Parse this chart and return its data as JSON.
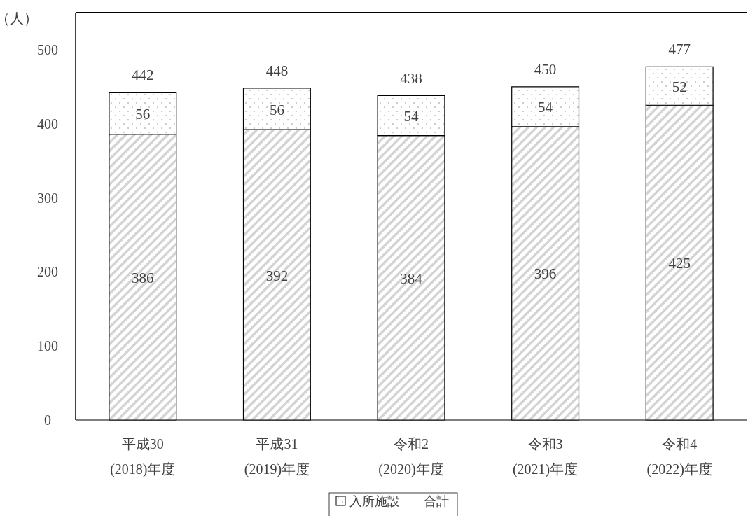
{
  "chart_data": {
    "type": "bar",
    "stacked": true,
    "ylabel": "（人）",
    "categories": [
      "平成30\n(2018)年度",
      "平成31\n(2019)年度",
      "令和2\n(2020)年度",
      "令和3\n(2021)年度",
      "令和4\n(2022)年度"
    ],
    "series": [
      {
        "color": "#d4d4d4",
        "values": [
          386,
          392,
          384,
          396,
          425
        ]
      },
      {
        "name": "入所施設",
        "color": "#bdbdbd",
        "values": [
          56,
          56,
          54,
          54,
          52
        ]
      }
    ],
    "totals": [
      "442",
      "448",
      "438",
      "450",
      "477"
    ],
    "annotations": [
      "合計"
    ],
    "ylim": [
      0,
      550
    ],
    "yticks": [
      0,
      100,
      200,
      300,
      400,
      500
    ],
    "data_labels": true,
    "legend": "bottom",
    "grid": false
  }
}
